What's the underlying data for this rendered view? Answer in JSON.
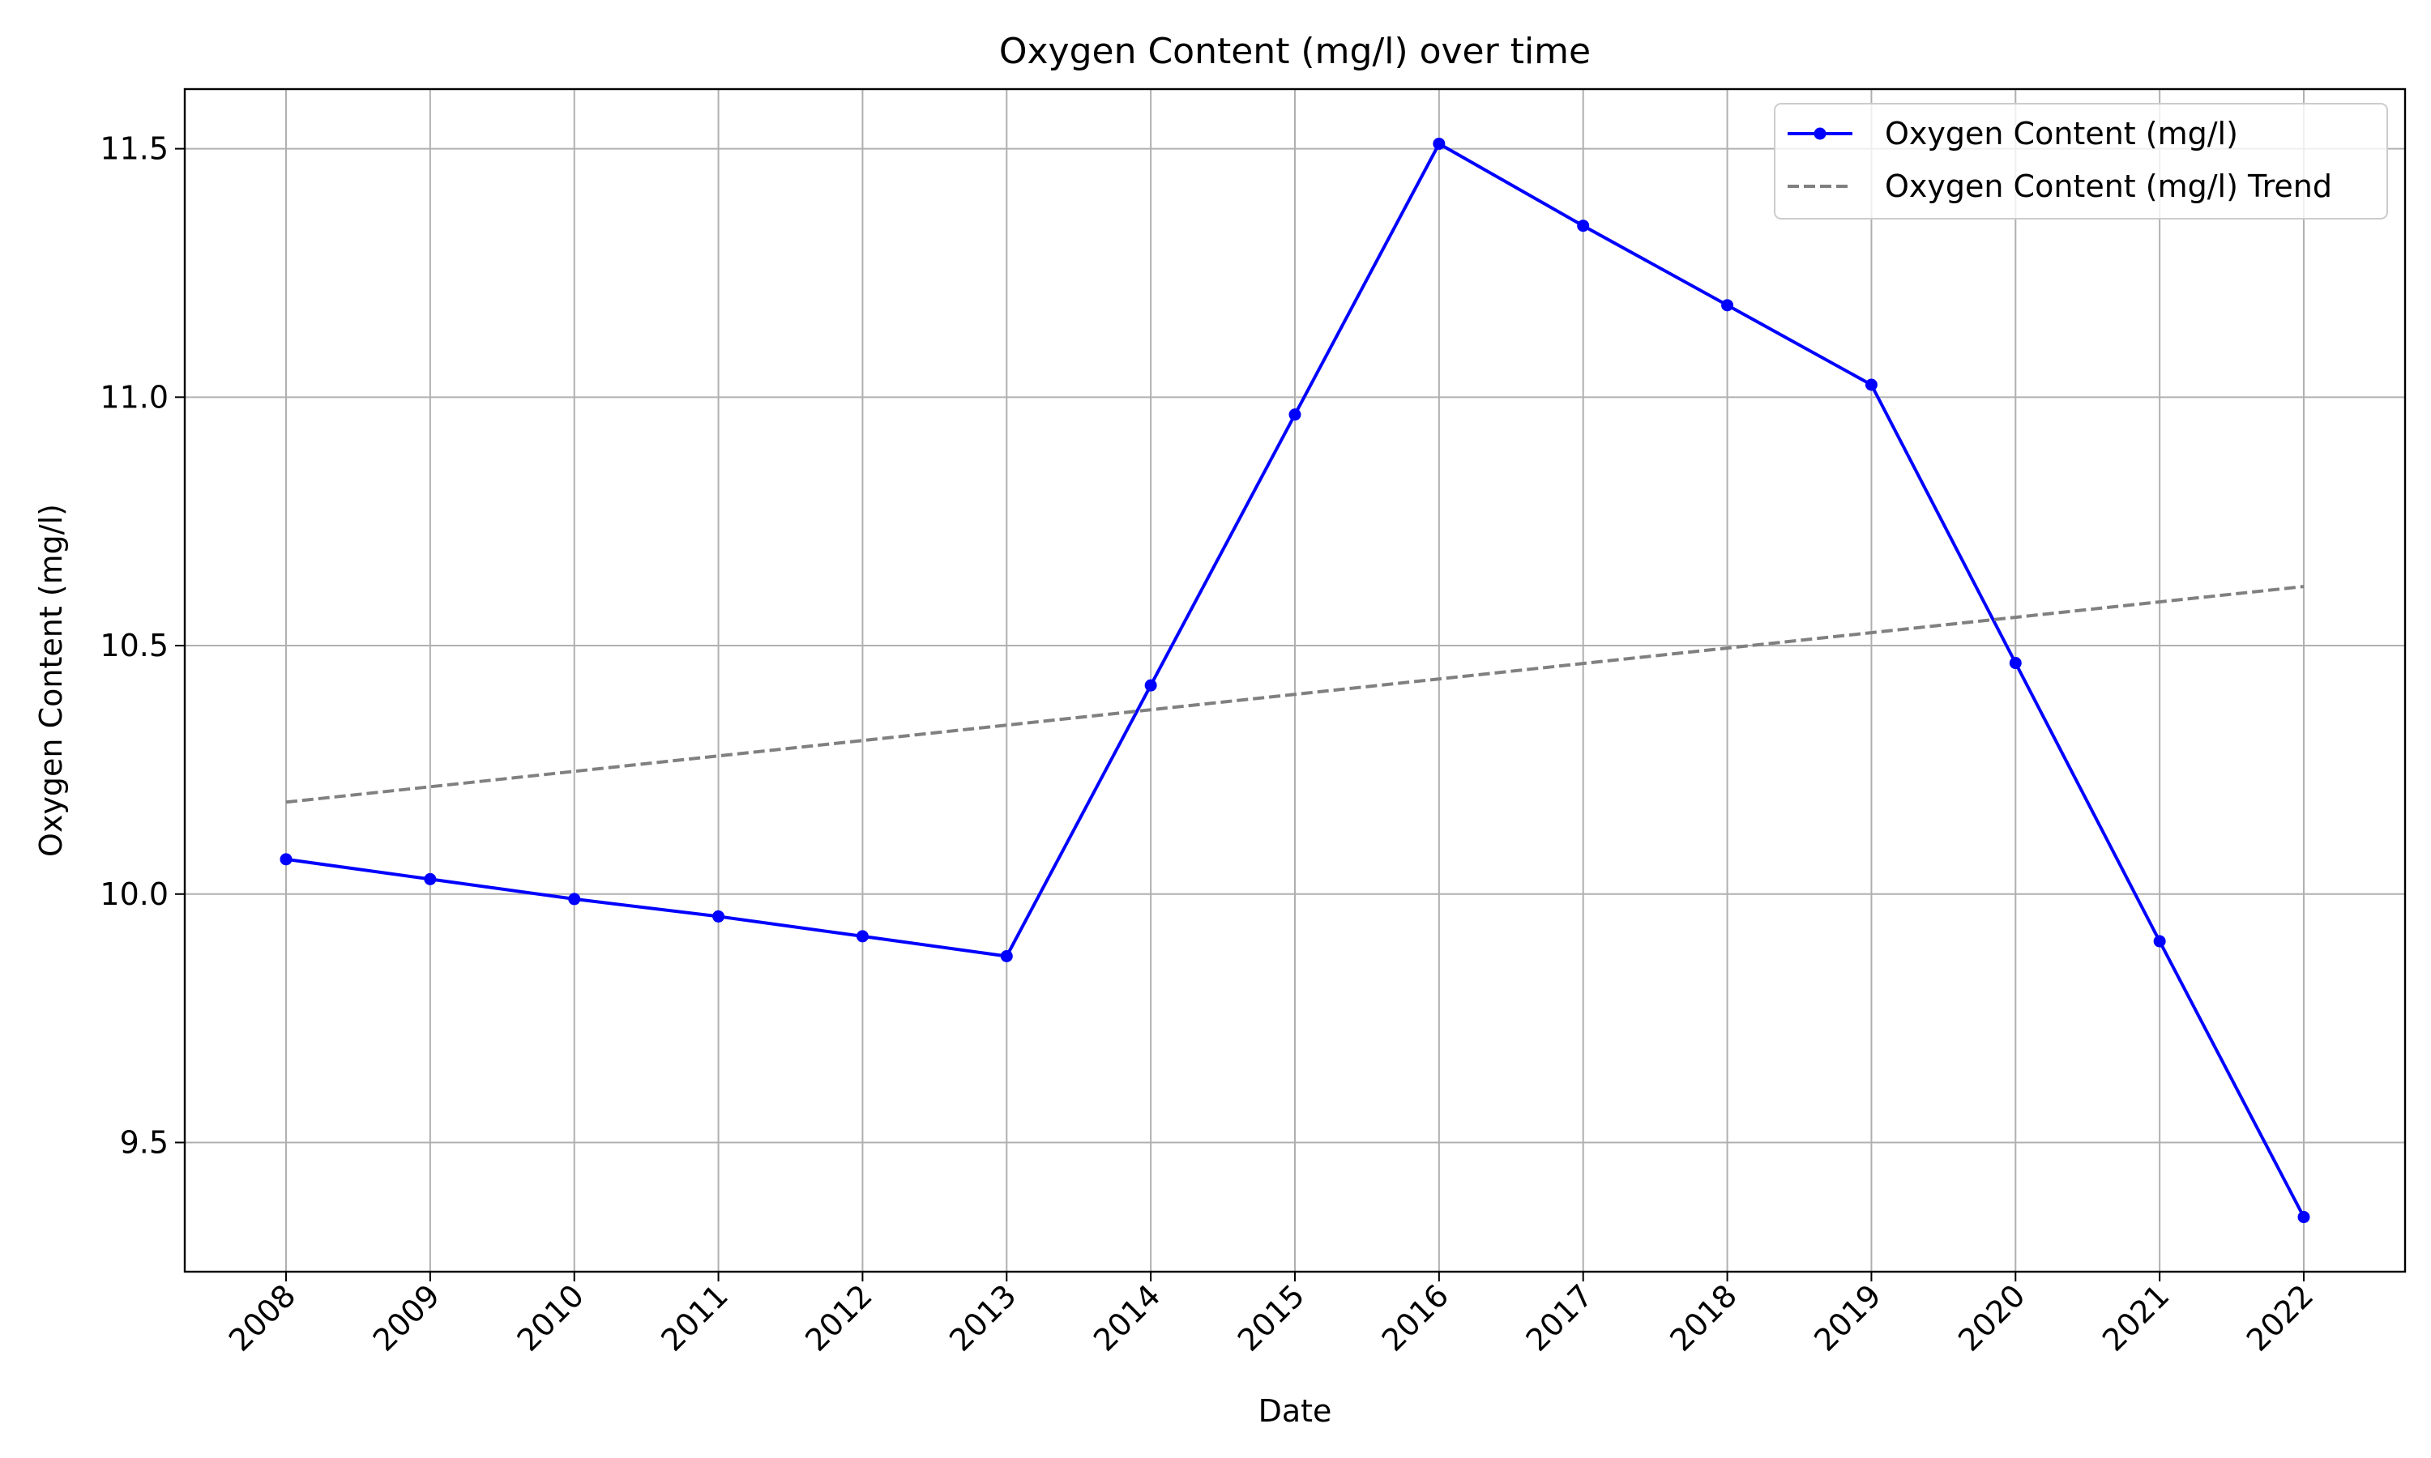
{
  "chart_data": {
    "type": "line",
    "title": "Oxygen Content (mg/l) over time",
    "xlabel": "Date",
    "ylabel": "Oxygen Content (mg/l)",
    "categories": [
      "2008",
      "2009",
      "2010",
      "2011",
      "2012",
      "2013",
      "2014",
      "2015",
      "2016",
      "2017",
      "2018",
      "2019",
      "2020",
      "2021",
      "2022"
    ],
    "ylim": [
      9.24,
      11.62
    ],
    "yticks": [
      "9.5",
      "10.0",
      "10.5",
      "11.0",
      "11.5"
    ],
    "grid": true,
    "legend_position": "top-right",
    "series": [
      {
        "name": "Oxygen Content (mg/l)",
        "color": "#0000ff",
        "style": "solid",
        "marker": "circle",
        "values": [
          10.07,
          10.03,
          9.99,
          9.955,
          9.915,
          9.875,
          10.42,
          10.965,
          11.51,
          11.345,
          11.185,
          11.025,
          10.465,
          9.905,
          9.35
        ]
      },
      {
        "name": "Oxygen Content (mg/l) Trend",
        "color": "#808080",
        "style": "dashed",
        "marker": "none",
        "values": [
          10.185,
          10.216,
          10.247,
          10.278,
          10.309,
          10.34,
          10.371,
          10.402,
          10.433,
          10.464,
          10.495,
          10.526,
          10.557,
          10.588,
          10.619
        ]
      }
    ]
  }
}
